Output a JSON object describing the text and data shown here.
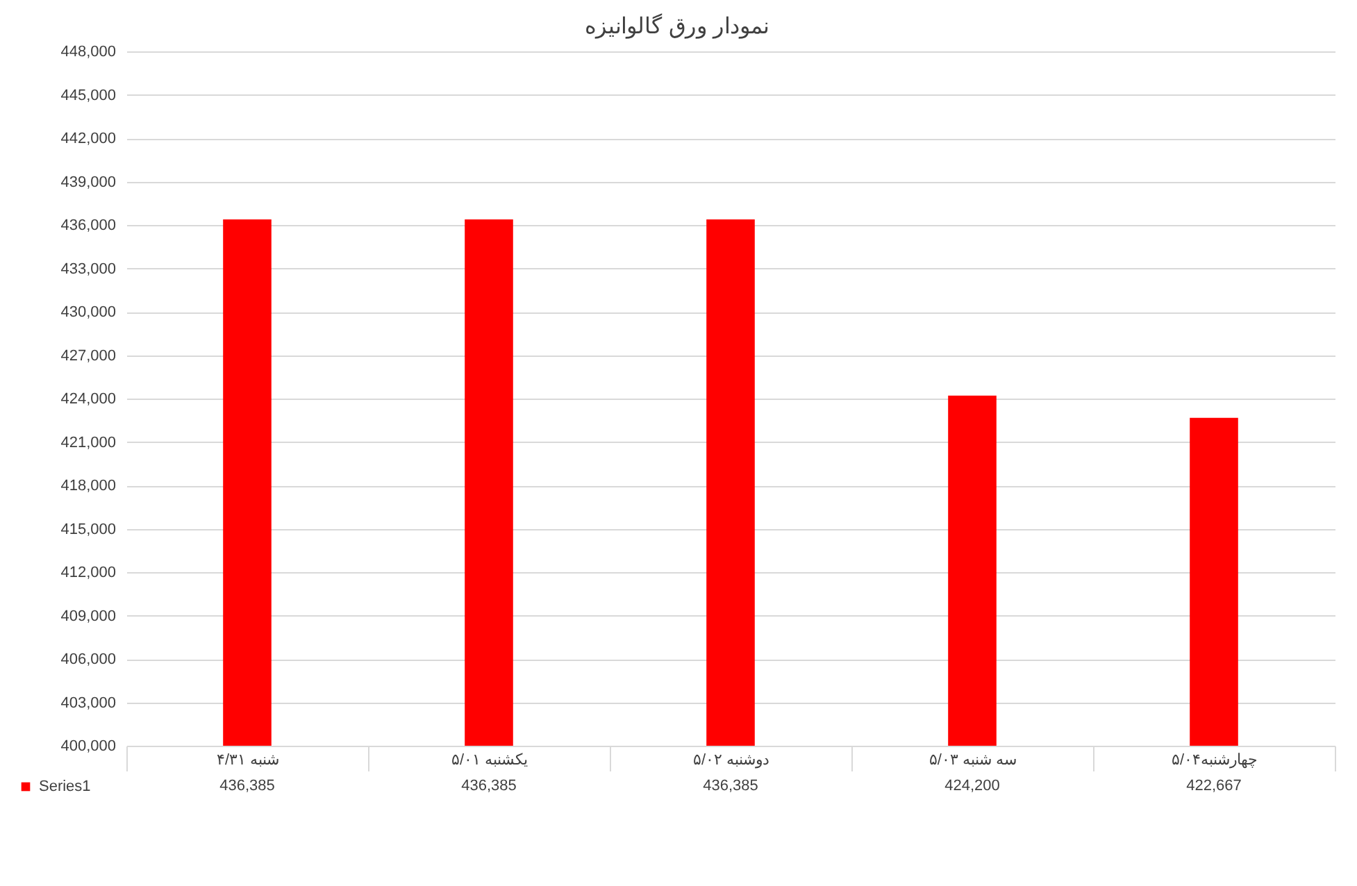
{
  "chart_data": {
    "type": "bar",
    "title": "نمودار ورق گالوانیزه",
    "categories": [
      "شنبه ۴/۳۱",
      "یکشنبه ۵/۰۱",
      "دوشنبه ۵/۰۲",
      "سه شنبه ۵/۰۳",
      "چهارشنبه۵/۰۴"
    ],
    "series": [
      {
        "name": "Series1",
        "color": "#ff0000",
        "values": [
          436385,
          436385,
          436385,
          424200,
          422667
        ],
        "value_labels": [
          "436,385",
          "436,385",
          "436,385",
          "424,200",
          "422,667"
        ]
      }
    ],
    "ylim": [
      400000,
      448000
    ],
    "yticks": [
      {
        "value": 400000,
        "label": "400,000"
      },
      {
        "value": 403000,
        "label": "403,000"
      },
      {
        "value": 406000,
        "label": "406,000"
      },
      {
        "value": 409000,
        "label": "409,000"
      },
      {
        "value": 412000,
        "label": "412,000"
      },
      {
        "value": 415000,
        "label": "415,000"
      },
      {
        "value": 418000,
        "label": "418,000"
      },
      {
        "value": 421000,
        "label": "421,000"
      },
      {
        "value": 424000,
        "label": "424,000"
      },
      {
        "value": 427000,
        "label": "427,000"
      },
      {
        "value": 430000,
        "label": "430,000"
      },
      {
        "value": 433000,
        "label": "433,000"
      },
      {
        "value": 436000,
        "label": "436,000"
      },
      {
        "value": 439000,
        "label": "439,000"
      },
      {
        "value": 442000,
        "label": "442,000"
      },
      {
        "value": 445000,
        "label": "445,000"
      },
      {
        "value": 448000,
        "label": "448,000"
      }
    ],
    "grid": "y",
    "legend": "bottom left"
  }
}
